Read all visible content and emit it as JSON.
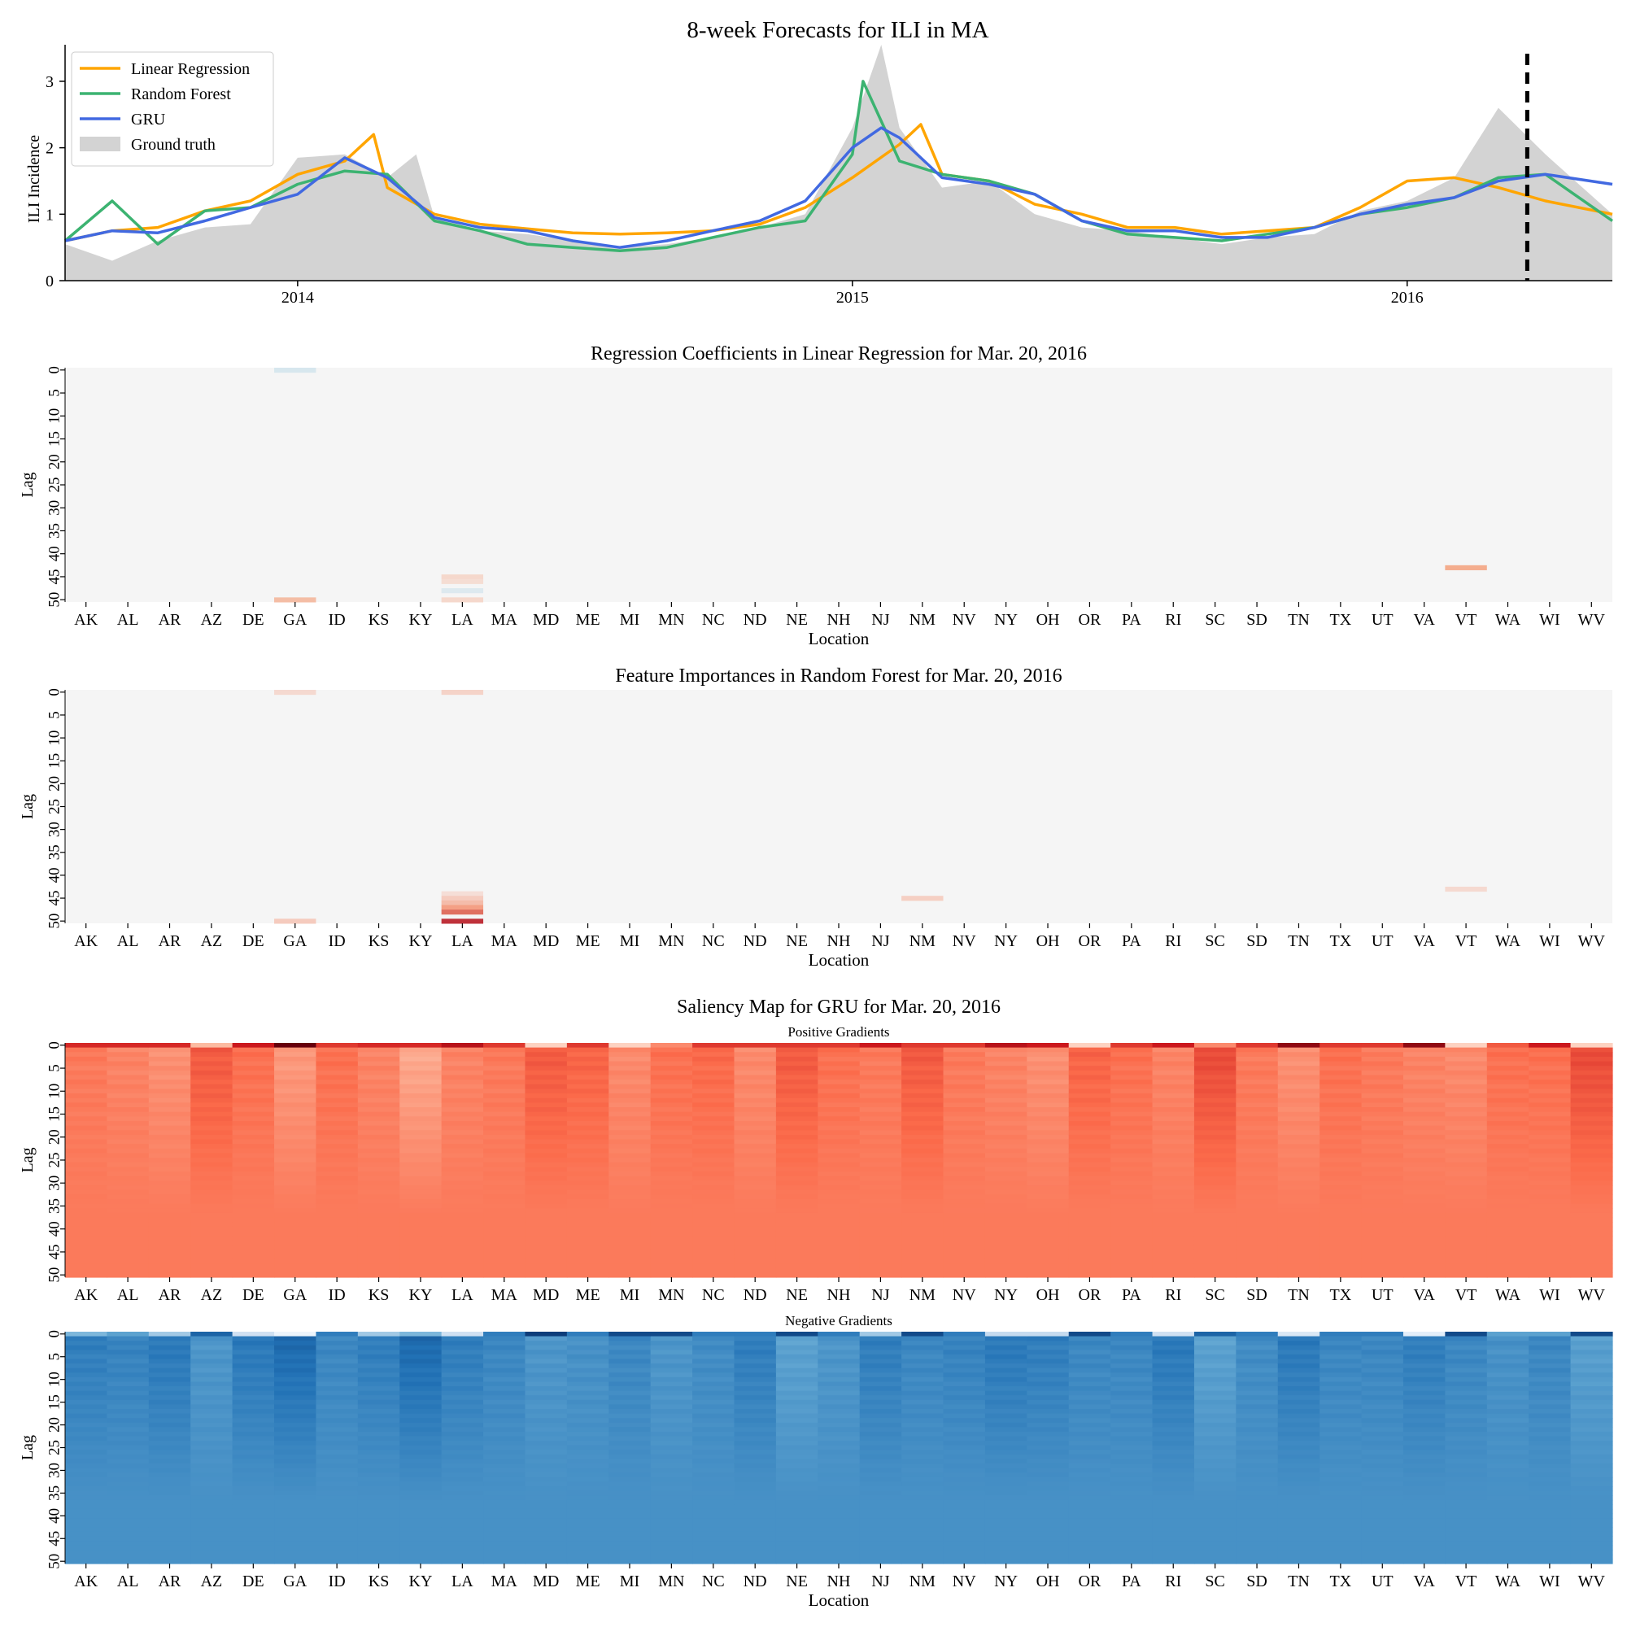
{
  "chart_data": [
    {
      "type": "line",
      "title": "8-week Forecasts for ILI in MA",
      "ylabel": "ILI Incidence",
      "xlabel": "",
      "ylim": [
        0,
        3.55
      ],
      "yticks": [
        "0",
        "1",
        "2",
        "3"
      ],
      "xticks": [
        "2014",
        "2015",
        "2016"
      ],
      "grid": false,
      "legend_position": "top-left",
      "forecast_marker": "2016-03-20",
      "series": [
        {
          "name": "Linear Regression",
          "color": "#FFA500",
          "kind": "line",
          "x": [
            "2013-08-01",
            "2013-09-01",
            "2013-10-01",
            "2013-11-01",
            "2013-12-01",
            "2014-01-01",
            "2014-02-01",
            "2014-02-20",
            "2014-03-01",
            "2014-04-01",
            "2014-05-01",
            "2014-06-01",
            "2014-07-01",
            "2014-08-01",
            "2014-09-01",
            "2014-10-01",
            "2014-11-01",
            "2014-12-01",
            "2015-01-01",
            "2015-02-01",
            "2015-02-15",
            "2015-03-01",
            "2015-04-01",
            "2015-05-01",
            "2015-06-01",
            "2015-07-01",
            "2015-08-01",
            "2015-09-01",
            "2015-10-01",
            "2015-11-01",
            "2015-12-01",
            "2016-01-01",
            "2016-02-01",
            "2016-03-01",
            "2016-04-01",
            "2016-05-15"
          ],
          "values": [
            0.6,
            0.75,
            0.8,
            1.05,
            1.2,
            1.6,
            1.8,
            2.2,
            1.4,
            1.0,
            0.85,
            0.78,
            0.72,
            0.7,
            0.72,
            0.75,
            0.85,
            1.1,
            1.55,
            2.05,
            2.35,
            1.6,
            1.5,
            1.15,
            1.0,
            0.8,
            0.8,
            0.7,
            0.75,
            0.8,
            1.1,
            1.5,
            1.55,
            1.4,
            1.2,
            1.0
          ]
        },
        {
          "name": "Random Forest",
          "color": "#3CB371",
          "kind": "line",
          "x": [
            "2013-08-01",
            "2013-09-01",
            "2013-10-01",
            "2013-11-01",
            "2013-12-01",
            "2014-01-01",
            "2014-02-01",
            "2014-03-01",
            "2014-04-01",
            "2014-05-01",
            "2014-06-01",
            "2014-07-01",
            "2014-08-01",
            "2014-09-01",
            "2014-10-01",
            "2014-11-01",
            "2014-12-01",
            "2015-01-01",
            "2015-01-08",
            "2015-02-01",
            "2015-03-01",
            "2015-04-01",
            "2015-05-01",
            "2015-06-01",
            "2015-07-01",
            "2015-08-01",
            "2015-09-01",
            "2015-10-01",
            "2015-11-01",
            "2015-12-01",
            "2016-01-01",
            "2016-02-01",
            "2016-03-01",
            "2016-04-01",
            "2016-05-15"
          ],
          "values": [
            0.6,
            1.2,
            0.55,
            1.05,
            1.1,
            1.45,
            1.65,
            1.6,
            0.9,
            0.75,
            0.55,
            0.5,
            0.45,
            0.5,
            0.65,
            0.8,
            0.9,
            1.9,
            3.0,
            1.8,
            1.6,
            1.5,
            1.3,
            0.9,
            0.7,
            0.65,
            0.6,
            0.7,
            0.8,
            1.0,
            1.1,
            1.25,
            1.55,
            1.6,
            0.9
          ]
        },
        {
          "name": "GRU",
          "color": "#4169E1",
          "kind": "line",
          "x": [
            "2013-08-01",
            "2013-09-01",
            "2013-10-01",
            "2013-11-01",
            "2013-12-01",
            "2014-01-01",
            "2014-02-01",
            "2014-03-01",
            "2014-04-01",
            "2014-05-01",
            "2014-06-01",
            "2014-07-01",
            "2014-08-01",
            "2014-09-01",
            "2014-10-01",
            "2014-11-01",
            "2014-12-01",
            "2015-01-01",
            "2015-01-20",
            "2015-02-01",
            "2015-03-01",
            "2015-04-01",
            "2015-05-01",
            "2015-06-01",
            "2015-07-01",
            "2015-08-01",
            "2015-09-01",
            "2015-10-01",
            "2015-11-01",
            "2015-12-01",
            "2016-01-01",
            "2016-02-01",
            "2016-03-01",
            "2016-04-01",
            "2016-05-15"
          ],
          "values": [
            0.6,
            0.75,
            0.72,
            0.9,
            1.1,
            1.3,
            1.85,
            1.55,
            0.95,
            0.8,
            0.75,
            0.6,
            0.5,
            0.6,
            0.75,
            0.9,
            1.2,
            2.0,
            2.3,
            2.15,
            1.55,
            1.45,
            1.3,
            0.9,
            0.75,
            0.75,
            0.65,
            0.65,
            0.8,
            1.0,
            1.15,
            1.25,
            1.5,
            1.6,
            1.45
          ]
        },
        {
          "name": "Ground truth",
          "color": "#D3D3D3",
          "kind": "area",
          "x": [
            "2013-08-01",
            "2013-09-01",
            "2013-10-01",
            "2013-11-01",
            "2013-12-01",
            "2014-01-01",
            "2014-02-01",
            "2014-03-01",
            "2014-03-20",
            "2014-04-01",
            "2014-05-01",
            "2014-06-01",
            "2014-07-01",
            "2014-08-01",
            "2014-09-01",
            "2014-10-01",
            "2014-11-01",
            "2014-12-01",
            "2015-01-01",
            "2015-01-20",
            "2015-02-01",
            "2015-03-01",
            "2015-04-01",
            "2015-05-01",
            "2015-06-01",
            "2015-07-01",
            "2015-08-01",
            "2015-09-01",
            "2015-10-01",
            "2015-11-01",
            "2015-12-01",
            "2016-01-01",
            "2016-02-01",
            "2016-03-01",
            "2016-04-01",
            "2016-05-15"
          ],
          "values": [
            0.55,
            0.3,
            0.6,
            0.8,
            0.85,
            1.85,
            1.9,
            1.55,
            1.9,
            0.95,
            0.75,
            0.7,
            0.6,
            0.5,
            0.55,
            0.65,
            0.8,
            1.0,
            2.3,
            3.55,
            2.3,
            1.4,
            1.5,
            1.0,
            0.8,
            0.75,
            0.65,
            0.55,
            0.65,
            0.7,
            1.05,
            1.2,
            1.55,
            2.6,
            1.9,
            1.0
          ]
        }
      ]
    },
    {
      "type": "heatmap",
      "title": "Regression Coefficients in Linear Regression for Mar. 20, 2016",
      "xlabel": "Location",
      "ylabel": "Lag",
      "categories": [
        "AK",
        "AL",
        "AR",
        "AZ",
        "DE",
        "GA",
        "ID",
        "KS",
        "KY",
        "LA",
        "MA",
        "MD",
        "ME",
        "MI",
        "MN",
        "NC",
        "ND",
        "NE",
        "NH",
        "NJ",
        "NM",
        "NV",
        "NY",
        "OH",
        "OR",
        "PA",
        "RI",
        "SC",
        "SD",
        "TN",
        "TX",
        "UT",
        "VA",
        "VT",
        "WA",
        "WI",
        "WV"
      ],
      "yticks": [
        "0",
        "5",
        "10",
        "15",
        "20",
        "25",
        "30",
        "35",
        "40",
        "45",
        "50"
      ],
      "colormap": "RdBu_r",
      "background": "#F5F5F5",
      "cells": [
        {
          "loc": "GA",
          "lag": 0,
          "value": -0.15
        },
        {
          "loc": "GA",
          "lag": 50,
          "value": 0.35
        },
        {
          "loc": "LA",
          "lag": 45,
          "value": 0.18
        },
        {
          "loc": "LA",
          "lag": 46,
          "value": 0.15
        },
        {
          "loc": "LA",
          "lag": 48,
          "value": -0.12
        },
        {
          "loc": "LA",
          "lag": 50,
          "value": 0.18
        },
        {
          "loc": "VT",
          "lag": 43,
          "value": 0.45
        }
      ]
    },
    {
      "type": "heatmap",
      "title": "Feature Importances in Random Forest for Mar. 20, 2016",
      "xlabel": "Location",
      "ylabel": "Lag",
      "categories": [
        "AK",
        "AL",
        "AR",
        "AZ",
        "DE",
        "GA",
        "ID",
        "KS",
        "KY",
        "LA",
        "MA",
        "MD",
        "ME",
        "MI",
        "MN",
        "NC",
        "ND",
        "NE",
        "NH",
        "NJ",
        "NM",
        "NV",
        "NY",
        "OH",
        "OR",
        "PA",
        "RI",
        "SC",
        "SD",
        "TN",
        "TX",
        "UT",
        "VA",
        "VT",
        "WA",
        "WI",
        "WV"
      ],
      "yticks": [
        "0",
        "5",
        "10",
        "15",
        "20",
        "25",
        "30",
        "35",
        "40",
        "45",
        "50"
      ],
      "colormap": "Reds",
      "background": "#F5F5F5",
      "cells": [
        {
          "loc": "GA",
          "lag": 0,
          "value": 0.15
        },
        {
          "loc": "GA",
          "lag": 50,
          "value": 0.22
        },
        {
          "loc": "LA",
          "lag": 0,
          "value": 0.18
        },
        {
          "loc": "LA",
          "lag": 44,
          "value": 0.12
        },
        {
          "loc": "LA",
          "lag": 45,
          "value": 0.22
        },
        {
          "loc": "LA",
          "lag": 46,
          "value": 0.3
        },
        {
          "loc": "LA",
          "lag": 47,
          "value": 0.45
        },
        {
          "loc": "LA",
          "lag": 48,
          "value": 0.65
        },
        {
          "loc": "LA",
          "lag": 50,
          "value": 0.9
        },
        {
          "loc": "NM",
          "lag": 45,
          "value": 0.2
        },
        {
          "loc": "VT",
          "lag": 43,
          "value": 0.15
        }
      ]
    },
    {
      "type": "heatmap",
      "title": "Saliency Map for GRU for Mar. 20, 2016",
      "subtitle": "Positive Gradients",
      "xlabel": "",
      "ylabel": "Lag",
      "categories": [
        "AK",
        "AL",
        "AR",
        "AZ",
        "DE",
        "GA",
        "ID",
        "KS",
        "KY",
        "LA",
        "MA",
        "MD",
        "ME",
        "MI",
        "MN",
        "NC",
        "ND",
        "NE",
        "NH",
        "NJ",
        "NM",
        "NV",
        "NY",
        "OH",
        "OR",
        "PA",
        "RI",
        "SC",
        "SD",
        "TN",
        "TX",
        "UT",
        "VA",
        "VT",
        "WA",
        "WI",
        "WV"
      ],
      "yticks": [
        "0",
        "5",
        "10",
        "15",
        "20",
        "25",
        "30",
        "35",
        "40",
        "45",
        "50"
      ],
      "colormap": "Reds",
      "lag0": [
        0.7,
        0.7,
        0.7,
        0.25,
        0.75,
        1.0,
        0.65,
        0.7,
        0.7,
        0.8,
        0.65,
        0.15,
        0.65,
        0.15,
        0.4,
        0.65,
        0.65,
        0.65,
        0.65,
        0.75,
        0.65,
        0.65,
        0.8,
        0.75,
        0.15,
        0.65,
        0.75,
        0.4,
        0.65,
        0.9,
        0.65,
        0.65,
        0.9,
        0.15,
        0.55,
        0.75,
        0.15
      ],
      "early": [
        0.45,
        0.42,
        0.38,
        0.55,
        0.48,
        0.35,
        0.48,
        0.42,
        0.3,
        0.42,
        0.45,
        0.55,
        0.52,
        0.4,
        0.48,
        0.5,
        0.4,
        0.55,
        0.48,
        0.45,
        0.55,
        0.45,
        0.42,
        0.38,
        0.52,
        0.48,
        0.42,
        0.6,
        0.45,
        0.38,
        0.48,
        0.45,
        0.42,
        0.4,
        0.48,
        0.48,
        0.6
      ],
      "late": 0.45
    },
    {
      "type": "heatmap",
      "title": "",
      "subtitle": "Negative Gradients",
      "xlabel": "Location",
      "ylabel": "Lag",
      "categories": [
        "AK",
        "AL",
        "AR",
        "AZ",
        "DE",
        "GA",
        "ID",
        "KS",
        "KY",
        "LA",
        "MA",
        "MD",
        "ME",
        "MI",
        "MN",
        "NC",
        "ND",
        "NE",
        "NH",
        "NJ",
        "NM",
        "NV",
        "NY",
        "OH",
        "OR",
        "PA",
        "RI",
        "SC",
        "SD",
        "TN",
        "TX",
        "UT",
        "VA",
        "VT",
        "WA",
        "WI",
        "WV"
      ],
      "yticks": [
        "0",
        "5",
        "10",
        "15",
        "20",
        "25",
        "30",
        "35",
        "40",
        "45",
        "50"
      ],
      "colormap": "Blues",
      "lag0": [
        0.45,
        0.55,
        0.35,
        0.8,
        0.2,
        0.05,
        0.7,
        0.35,
        0.45,
        0.2,
        0.7,
        0.95,
        0.7,
        0.9,
        0.9,
        0.7,
        0.7,
        0.9,
        0.7,
        0.35,
        0.9,
        0.7,
        0.25,
        0.25,
        0.9,
        0.7,
        0.2,
        0.8,
        0.7,
        0.15,
        0.7,
        0.7,
        0.1,
        0.9,
        0.55,
        0.55,
        0.9
      ],
      "early": [
        0.7,
        0.68,
        0.72,
        0.6,
        0.72,
        0.78,
        0.66,
        0.7,
        0.78,
        0.7,
        0.66,
        0.6,
        0.62,
        0.66,
        0.6,
        0.64,
        0.7,
        0.55,
        0.6,
        0.7,
        0.66,
        0.68,
        0.72,
        0.7,
        0.66,
        0.66,
        0.72,
        0.55,
        0.64,
        0.72,
        0.66,
        0.66,
        0.7,
        0.66,
        0.62,
        0.66,
        0.56
      ],
      "late": 0.62
    }
  ]
}
